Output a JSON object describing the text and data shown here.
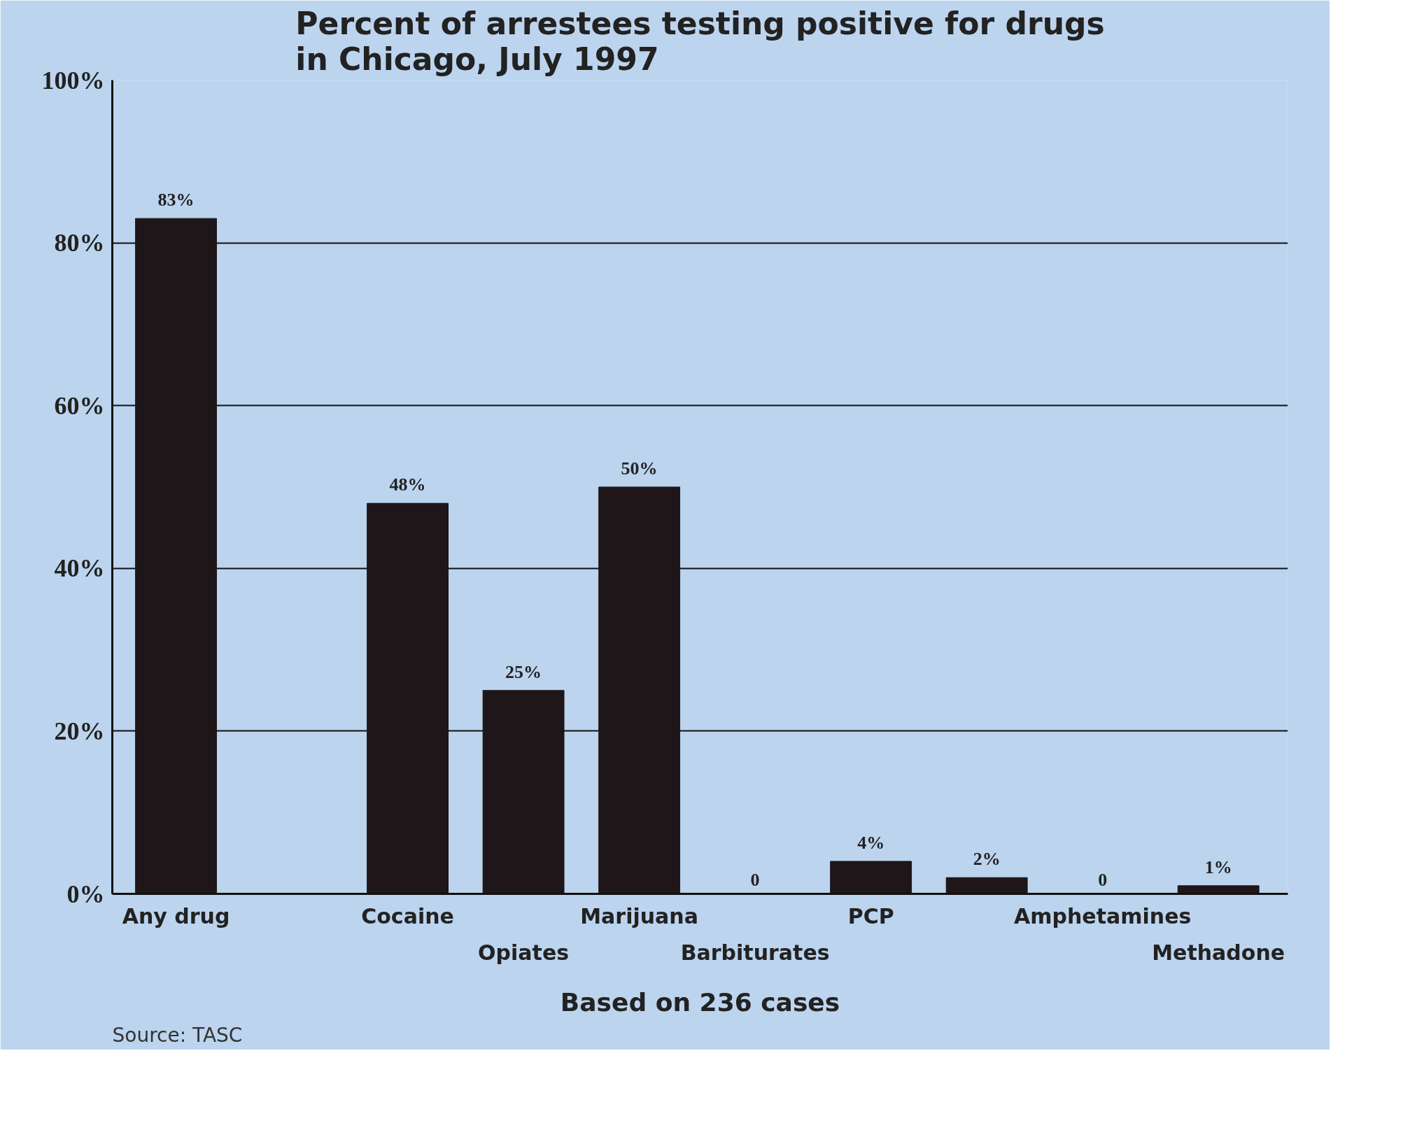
{
  "chart_data": {
    "type": "bar",
    "title": "Percent of arrestees testing positive for drugs\nin Chicago, July 1997",
    "categories": [
      "Any drug",
      null,
      "Cocaine",
      "Opiates",
      "Marijuana",
      "Barbiturates",
      "PCP",
      null,
      "Amphetamines",
      "Methadone"
    ],
    "values": [
      83,
      null,
      48,
      25,
      50,
      0,
      4,
      2,
      0,
      1
    ],
    "value_labels": [
      "83%",
      null,
      "48%",
      "25%",
      "50%",
      "0",
      "4%",
      "2%",
      "0",
      "1%"
    ],
    "color": "#1e1618",
    "xlabel": "Based on 236 cases",
    "ylim": [
      0,
      100
    ],
    "yticks": [
      {
        "value": 0,
        "label": "0%"
      },
      {
        "value": 20,
        "label": "20%"
      },
      {
        "value": 40,
        "label": "40%"
      },
      {
        "value": 60,
        "label": "60%"
      },
      {
        "value": 80,
        "label": "80%"
      },
      {
        "value": 100,
        "label": "100%"
      }
    ],
    "grid": "y",
    "annotations": [
      "Source: TASC"
    ]
  }
}
